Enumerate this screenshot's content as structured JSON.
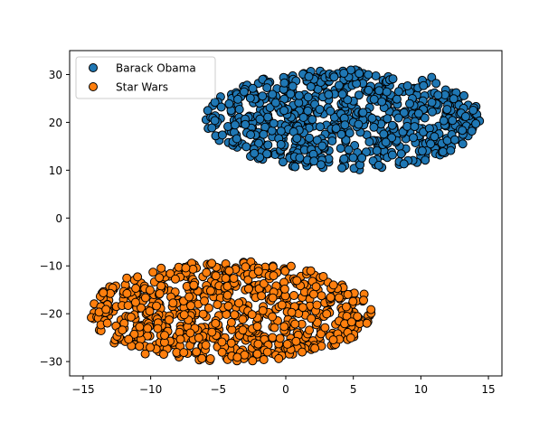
{
  "chart_data": {
    "type": "scatter",
    "title": "",
    "xlabel": "",
    "ylabel": "",
    "xlim": [
      -16.0,
      16.0
    ],
    "ylim": [
      -33.0,
      35.0
    ],
    "x_ticks": [
      -15,
      -10,
      -5,
      0,
      5,
      10,
      15
    ],
    "y_ticks": [
      -30,
      -20,
      -10,
      0,
      10,
      20,
      30
    ],
    "x_tick_labels": [
      "−15",
      "−10",
      "−5",
      "0",
      "5",
      "10",
      "15"
    ],
    "y_tick_labels": [
      "−30",
      "−20",
      "−10",
      "0",
      "10",
      "20",
      "30"
    ],
    "grid": false,
    "legend": {
      "placement": "top-left",
      "entries": [
        "Barack Obama",
        "Star Wars"
      ]
    },
    "series": [
      {
        "name": "Barack Obama",
        "color": "#1f77b4",
        "x_range": [
          -6.0,
          14.5
        ],
        "y_range": [
          10.0,
          31.0
        ],
        "points": [
          [
            -5.2,
            19.5
          ],
          [
            -4.8,
            17.2
          ],
          [
            -4.1,
            23.4
          ],
          [
            -3.6,
            14.8
          ],
          [
            -3.1,
            26.1
          ],
          [
            -2.7,
            21.3
          ],
          [
            -2.2,
            15.6
          ],
          [
            -1.8,
            28.4
          ],
          [
            -1.3,
            18.9
          ],
          [
            -0.8,
            24.7
          ],
          [
            -0.4,
            13.2
          ],
          [
            0.1,
            29.1
          ],
          [
            0.5,
            20.6
          ],
          [
            0.9,
            16.3
          ],
          [
            1.4,
            25.8
          ],
          [
            1.8,
            11.7
          ],
          [
            2.3,
            22.2
          ],
          [
            2.7,
            27.6
          ],
          [
            3.2,
            14.1
          ],
          [
            3.6,
            19.8
          ],
          [
            4.1,
            30.2
          ],
          [
            4.5,
            17.5
          ],
          [
            5.0,
            23.9
          ],
          [
            5.4,
            12.6
          ],
          [
            5.9,
            26.7
          ],
          [
            6.3,
            21.0
          ],
          [
            6.8,
            15.2
          ],
          [
            7.2,
            28.8
          ],
          [
            7.7,
            18.3
          ],
          [
            8.1,
            24.4
          ],
          [
            8.6,
            13.7
          ],
          [
            9.0,
            20.1
          ],
          [
            9.5,
            27.1
          ],
          [
            9.9,
            16.8
          ],
          [
            10.4,
            22.9
          ],
          [
            10.8,
            29.4
          ],
          [
            11.3,
            19.2
          ],
          [
            11.7,
            14.6
          ],
          [
            12.2,
            25.3
          ],
          [
            12.6,
            21.7
          ],
          [
            13.1,
            17.9
          ],
          [
            13.5,
            23.6
          ],
          [
            14.0,
            20.4
          ],
          [
            -3.9,
            18.1
          ],
          [
            -1.5,
            22.6
          ],
          [
            0.7,
            14.9
          ],
          [
            2.1,
            25.1
          ],
          [
            3.9,
            21.8
          ],
          [
            6.0,
            17.4
          ],
          [
            7.9,
            22.3
          ],
          [
            9.7,
            25.7
          ],
          [
            11.1,
            16.2
          ],
          [
            12.8,
            19.6
          ],
          [
            1.2,
            19.0
          ],
          [
            4.7,
            28.1
          ],
          [
            8.4,
            11.2
          ],
          [
            -2.4,
            24.1
          ],
          [
            5.6,
            20.3
          ],
          [
            10.1,
            18.7
          ],
          [
            -0.2,
            16.6
          ]
        ]
      },
      {
        "name": "Star Wars",
        "color": "#ff7f0e",
        "x_range": [
          -14.5,
          6.5
        ],
        "y_range": [
          -30.0,
          -9.0
        ],
        "points": [
          [
            -14.2,
            -19.8
          ],
          [
            -13.8,
            -23.4
          ],
          [
            -13.1,
            -17.2
          ],
          [
            -12.7,
            -26.1
          ],
          [
            -12.2,
            -21.3
          ],
          [
            -11.8,
            -14.8
          ],
          [
            -11.3,
            -24.7
          ],
          [
            -10.9,
            -18.9
          ],
          [
            -10.4,
            -28.4
          ],
          [
            -10.0,
            -15.6
          ],
          [
            -9.5,
            -22.2
          ],
          [
            -9.1,
            -12.6
          ],
          [
            -8.6,
            -26.7
          ],
          [
            -8.2,
            -19.5
          ],
          [
            -7.7,
            -11.7
          ],
          [
            -7.3,
            -23.9
          ],
          [
            -6.8,
            -17.5
          ],
          [
            -6.4,
            -29.1
          ],
          [
            -5.9,
            -20.6
          ],
          [
            -5.5,
            -13.2
          ],
          [
            -5.0,
            -25.8
          ],
          [
            -4.6,
            -16.3
          ],
          [
            -4.1,
            -22.9
          ],
          [
            -3.7,
            -10.4
          ],
          [
            -3.2,
            -27.6
          ],
          [
            -2.8,
            -18.3
          ],
          [
            -2.3,
            -14.1
          ],
          [
            -1.9,
            -24.4
          ],
          [
            -1.4,
            -20.1
          ],
          [
            -1.0,
            -11.2
          ],
          [
            -0.5,
            -27.1
          ],
          [
            -0.1,
            -16.8
          ],
          [
            0.4,
            -22.6
          ],
          [
            0.8,
            -13.7
          ],
          [
            1.3,
            -25.3
          ],
          [
            1.7,
            -18.7
          ],
          [
            2.2,
            -15.2
          ],
          [
            2.6,
            -23.6
          ],
          [
            3.1,
            -19.2
          ],
          [
            3.5,
            -26.4
          ],
          [
            4.0,
            -16.9
          ],
          [
            4.4,
            -21.7
          ],
          [
            4.9,
            -18.1
          ],
          [
            5.3,
            -23.1
          ],
          [
            5.8,
            -15.9
          ],
          [
            6.2,
            -20.4
          ],
          [
            -11.5,
            -20.7
          ],
          [
            -9.8,
            -17.4
          ],
          [
            -7.1,
            -21.8
          ],
          [
            -4.4,
            -19.3
          ],
          [
            -2.0,
            -21.0
          ],
          [
            0.2,
            -19.9
          ],
          [
            2.5,
            -20.8
          ],
          [
            -6.0,
            -24.9
          ],
          [
            -3.0,
            -15.0
          ],
          [
            1.0,
            -24.0
          ],
          [
            -8.8,
            -22.8
          ],
          [
            -0.6,
            -14.4
          ],
          [
            3.3,
            -17.6
          ],
          [
            -12.9,
            -19.0
          ]
        ]
      }
    ]
  }
}
